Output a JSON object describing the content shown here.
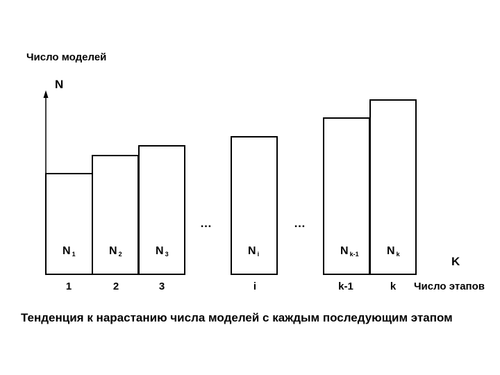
{
  "y_axis": {
    "title": "Число моделей",
    "letter": "N"
  },
  "x_axis": {
    "title": "Число этапов",
    "letter": "K"
  },
  "chart_data": {
    "type": "bar",
    "categories": [
      "1",
      "2",
      "3",
      "i",
      "k-1",
      "k"
    ],
    "series": [
      {
        "values": [
          145,
          171,
          185,
          198,
          225,
          251
        ]
      }
    ],
    "bar_labels": [
      {
        "main": "N",
        "sub": "1"
      },
      {
        "main": "N",
        "sub": "2"
      },
      {
        "main": "N",
        "sub": "3"
      },
      {
        "main": "N",
        "sub": "i"
      },
      {
        "main": "N",
        "sub": "k-1"
      },
      {
        "main": "N",
        "sub": "k"
      }
    ],
    "ellipses": [
      "…",
      "…"
    ]
  },
  "caption": "Тенденция к нарастанию числа моделей с каждым последующим этапом"
}
